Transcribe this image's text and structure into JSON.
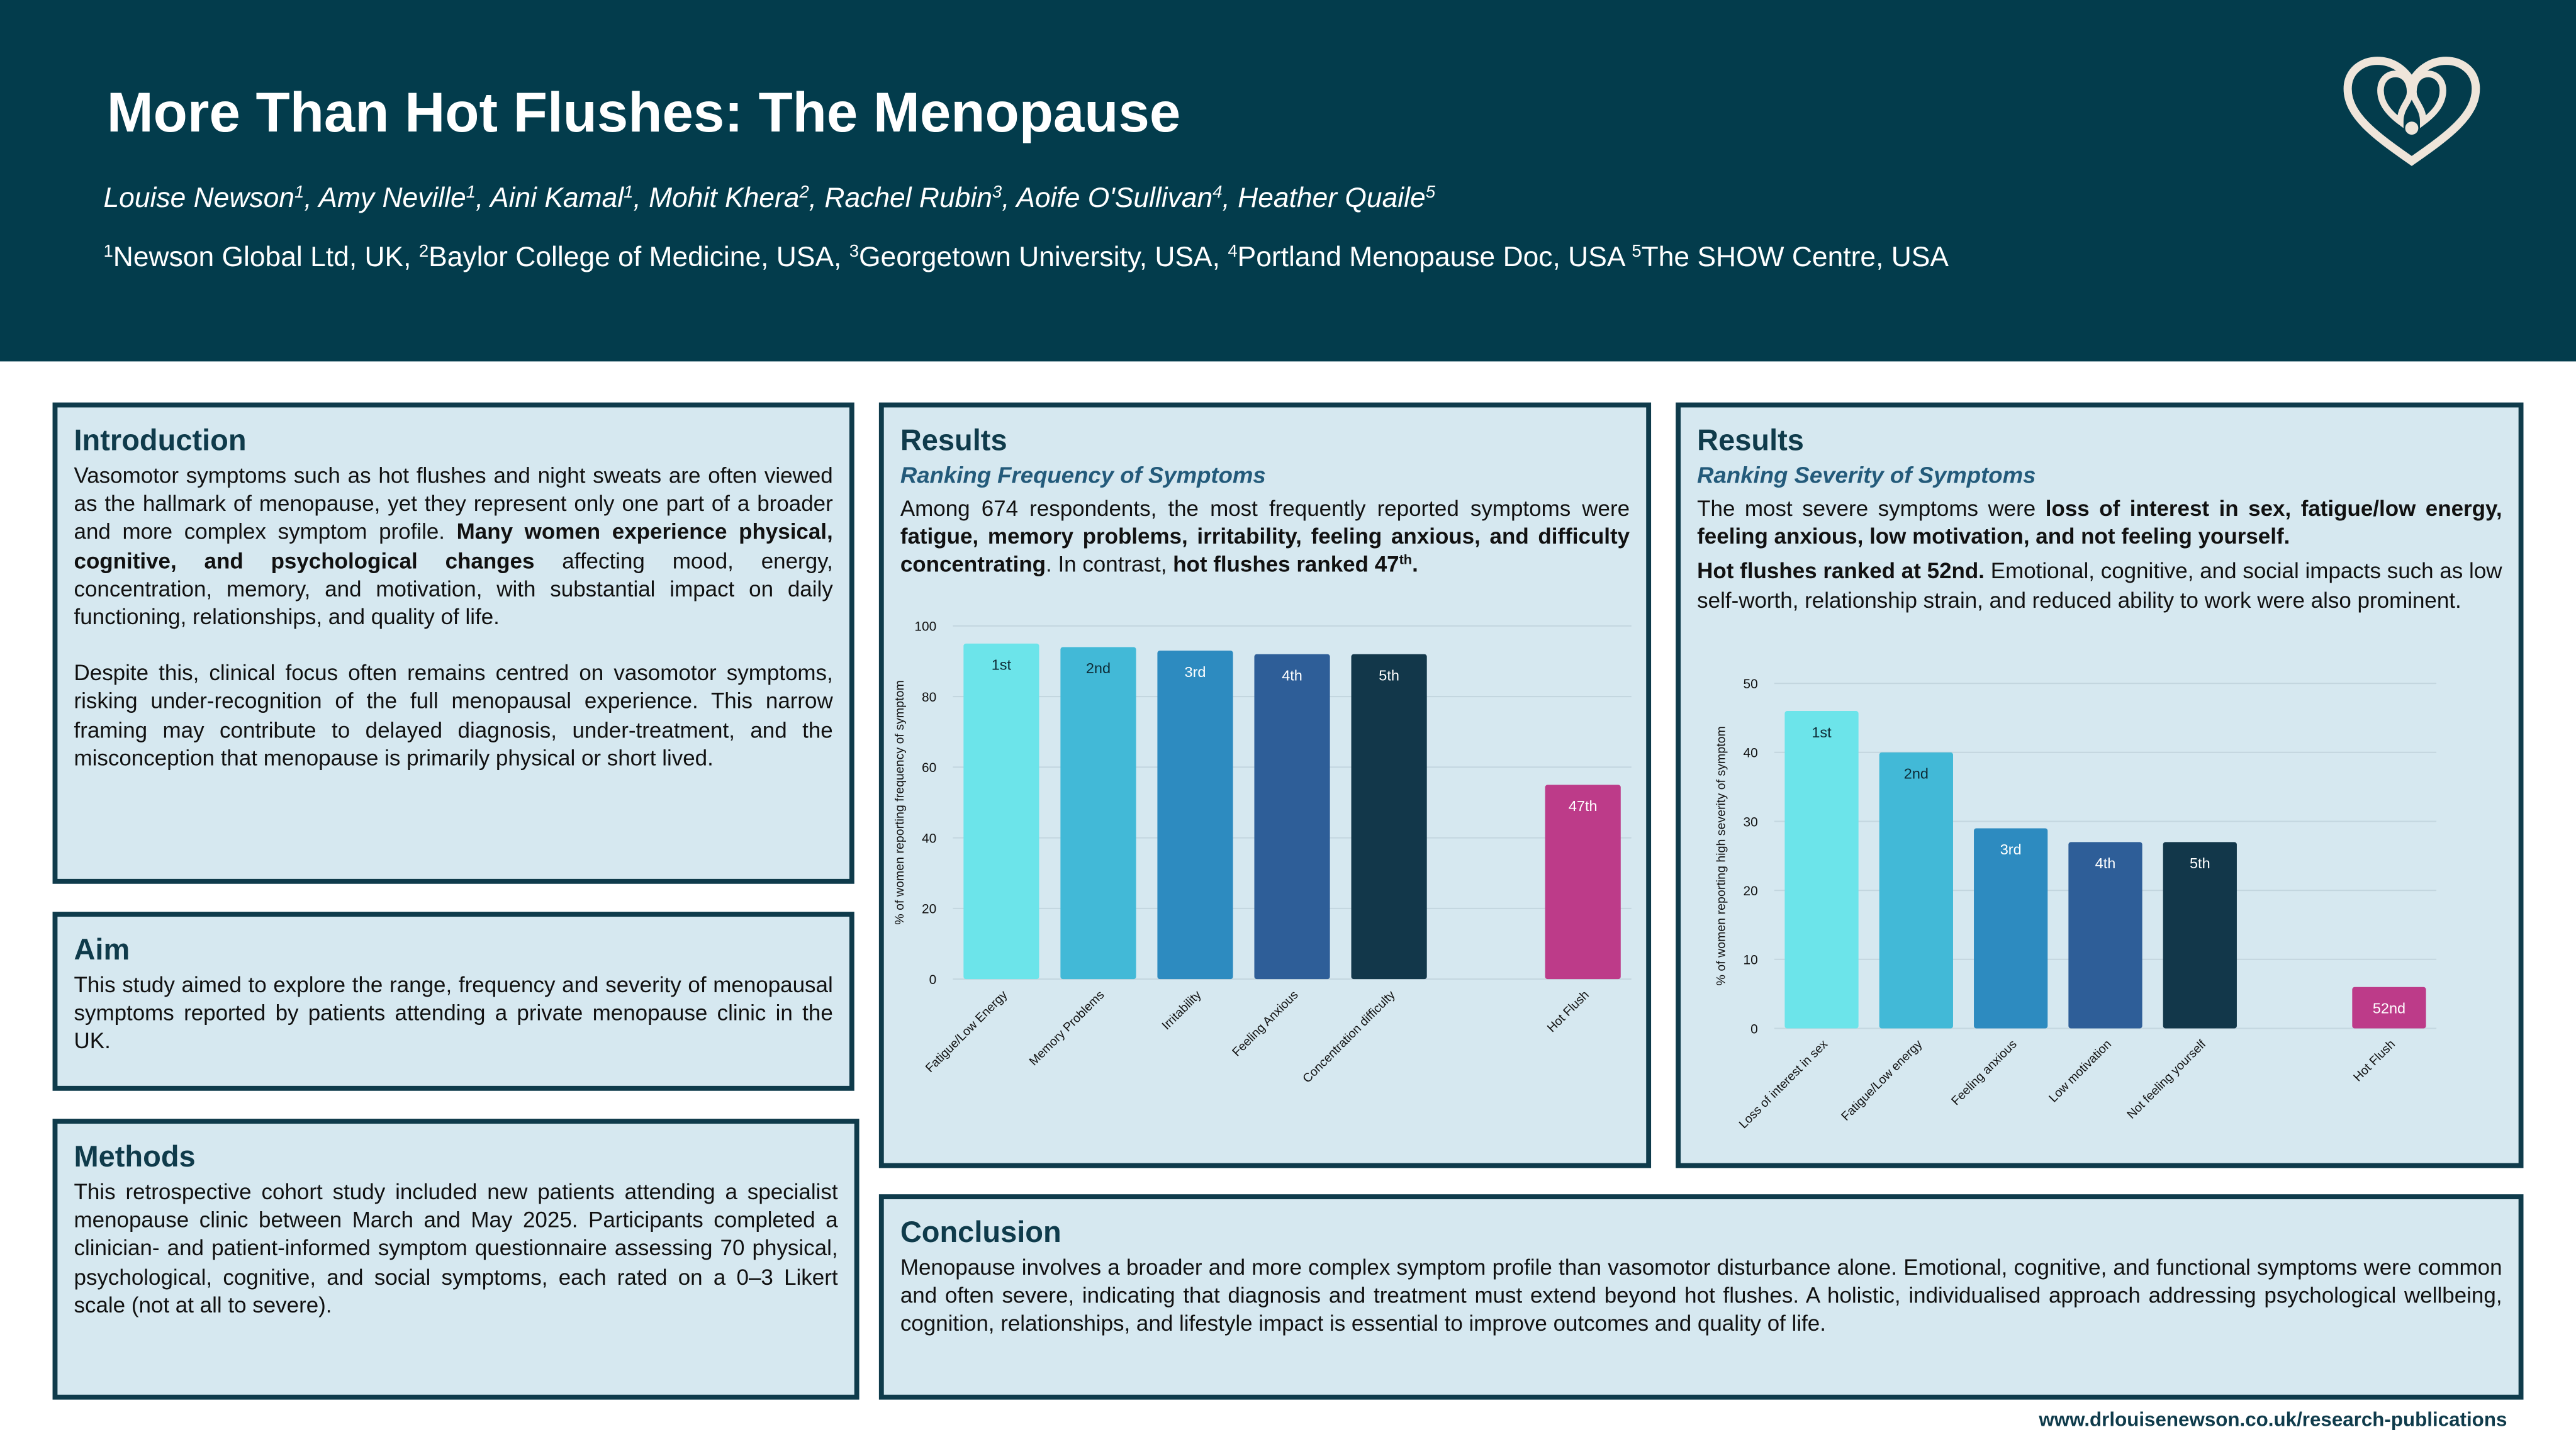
{
  "header": {
    "title": "More Than Hot Flushes: The Menopause",
    "authors": [
      "Louise Newson",
      {
        "text": "1",
        "sup": true
      },
      ", Amy Neville",
      {
        "text": "1",
        "sup": true
      },
      ", Aini Kamal",
      {
        "text": "1",
        "sup": true
      },
      ", Mohit Khera",
      {
        "text": "2",
        "sup": true
      },
      ", Rachel Rubin",
      {
        "text": "3",
        "sup": true
      },
      ", Aoife O'Sullivan",
      {
        "text": "4",
        "sup": true
      },
      ", Heather Quaile",
      {
        "text": "5",
        "sup": true
      }
    ],
    "affiliations": [
      {
        "text": "1",
        "sup": true
      },
      "Newson Global Ltd, UK, ",
      {
        "text": "2",
        "sup": true
      },
      "Baylor College of Medicine, USA, ",
      {
        "text": "3",
        "sup": true
      },
      "Georgetown University, USA, ",
      {
        "text": "4",
        "sup": true
      },
      "Portland Menopause Doc, USA ",
      {
        "text": "5",
        "sup": true
      },
      "The SHOW Centre, USA"
    ]
  },
  "introduction": {
    "heading": "Introduction",
    "paragraphs": [
      [
        "Vasomotor symptoms such as hot flushes and night sweats are often viewed as the hallmark of menopause, yet they represent only one part of a broader and more complex symptom profile. ",
        {
          "text": "Many women experience physical, cognitive, and psychological changes",
          "bold": true
        },
        " affecting mood, energy, concentration, memory, and motivation, with substantial impact on daily functioning, relationships, and quality of life."
      ],
      [
        "Despite this, clinical focus often remains centred on vasomotor symptoms, risking under-recognition of the full menopausal experience. This narrow framing may contribute to delayed diagnosis, under-treatment, and the misconception that menopause is primarily physical or short lived."
      ]
    ]
  },
  "aim": {
    "heading": "Aim",
    "paragraphs": [
      [
        "This study aimed to explore the range, frequency and severity of menopausal symptoms reported by patients attending a private menopause clinic in the UK."
      ]
    ]
  },
  "methods": {
    "heading": "Methods",
    "paragraphs": [
      [
        "This retrospective cohort study included new patients attending a specialist menopause clinic between March and May 2025. Participants completed a clinician- and patient-informed symptom questionnaire assessing 70 physical, psychological, cognitive, and social symptoms, each rated on a 0–3 Likert scale (not at all to severe)."
      ]
    ]
  },
  "results_frequency": {
    "heading": "Results",
    "subheading": "Ranking Frequency of Symptoms",
    "paragraphs": [
      [
        "Among 674 respondents, the most frequently reported symptoms were ",
        {
          "text": "fatigue, memory problems, irritability, feeling anxious, and difficulty concentrating",
          "bold": true
        },
        ". In contrast, ",
        {
          "text": "hot flushes ranked 47",
          "bold": true
        },
        {
          "text": "th",
          "bold": true,
          "sup": true
        },
        {
          "text": ".",
          "bold": true
        }
      ]
    ]
  },
  "results_severity": {
    "heading": "Results",
    "subheading": "Ranking Severity of Symptoms",
    "paragraphs": [
      [
        "The most severe symptoms were ",
        {
          "text": "loss of interest in sex, fatigue/low energy, feeling anxious, low motivation, and not feeling yourself.",
          "bold": true
        }
      ],
      [
        {
          "text": "Hot flushes ranked at 52nd.",
          "bold": true
        },
        " Emotional, cognitive, and social impacts such as low self-worth, relationship strain, and reduced ability to work were also prominent."
      ]
    ]
  },
  "conclusion": {
    "heading": "Conclusion",
    "paragraphs": [
      [
        "Menopause involves a broader and more complex symptom profile than vasomotor disturbance alone. Emotional, cognitive, and functional symptoms were common and often severe, indicating that diagnosis and treatment must extend beyond hot flushes. A holistic, individualised approach addressing psychological wellbeing, cognition, relationships, and lifestyle impact is essential to improve outcomes and quality of life."
      ]
    ]
  },
  "footer": {
    "url": "www.drlouisenewson.co.uk/research-publications"
  },
  "chart_data": [
    {
      "type": "bar",
      "y_label": "% of women reporting frequency of symptom",
      "categories": [
        "Fatigue/Low Energy",
        "Memory Problems",
        "Irritability",
        "Feeling Anxious",
        "Concentration difficulty",
        null,
        "Hot Flush"
      ],
      "values": [
        95,
        94,
        93,
        92,
        92,
        0,
        55
      ],
      "bar_labels": [
        "1st",
        "2nd",
        "3rd",
        "4th",
        "5th",
        null,
        "47th"
      ],
      "colors": [
        "#6ce4ea",
        "#42b9d7",
        "#2d8bc0",
        "#2e5e98",
        "#12374a",
        "#9aa5ab",
        "#bd3b89"
      ],
      "ylim": [
        0,
        100
      ],
      "yticks": [
        0,
        20,
        40,
        60,
        80,
        100
      ],
      "grid": true
    },
    {
      "type": "bar",
      "y_label": "% of women reporting high severity of symptom",
      "categories": [
        "Loss of interest in sex",
        "Fatigue/Low energy",
        "Feeling anxious",
        "Low motivation",
        "Not feeling yourself",
        null,
        "Hot Flush"
      ],
      "values": [
        46,
        40,
        29,
        27,
        27,
        0,
        6
      ],
      "bar_labels": [
        "1st",
        "2nd",
        "3rd",
        "4th",
        "5th",
        null,
        "52nd"
      ],
      "colors": [
        "#6ce4ea",
        "#42b9d7",
        "#2d8bc0",
        "#2e5e98",
        "#12374a",
        "#9aa5ab",
        "#bd3b89"
      ],
      "ylim": [
        0,
        50
      ],
      "yticks": [
        0,
        10,
        20,
        30,
        40,
        50
      ],
      "grid": true
    }
  ]
}
